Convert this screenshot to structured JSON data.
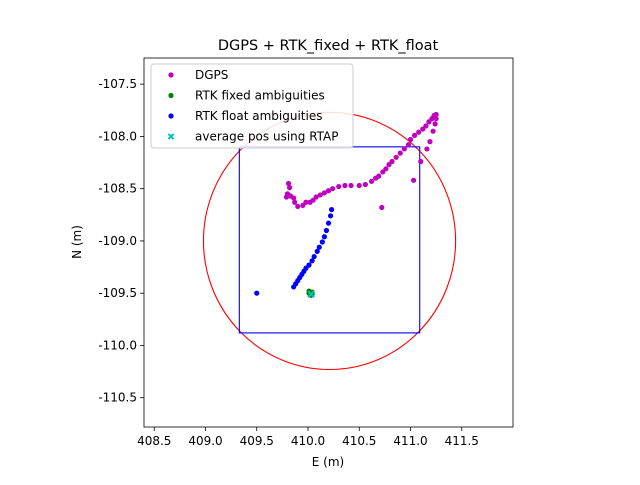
{
  "chart_data": {
    "type": "scatter",
    "title": "DGPS + RTK_fixed + RTK_float",
    "xlabel": "E (m)",
    "ylabel": "N (m)",
    "xlim": [
      408.4,
      412.0
    ],
    "ylim": [
      -110.78,
      -107.25
    ],
    "x_ticks": [
      408.5,
      409.0,
      409.5,
      410.0,
      410.5,
      411.0,
      411.5
    ],
    "x_tick_labels": [
      "408.5",
      "409.0",
      "409.5",
      "410.0",
      "410.5",
      "411.0",
      "411.5"
    ],
    "y_ticks": [
      -107.5,
      -108.0,
      -108.5,
      -109.0,
      -109.5,
      -110.0,
      -110.5
    ],
    "y_tick_labels": [
      "-107.5",
      "-108.0",
      "-108.5",
      "-109.0",
      "-109.5",
      "-110.0",
      "-110.5"
    ],
    "grid": false,
    "legend_position": "top-left",
    "series": [
      {
        "name": "DGPS",
        "marker": "circle",
        "color": "#bf00bf",
        "points": [
          [
            409.81,
            -108.45
          ],
          [
            409.82,
            -108.49
          ],
          [
            409.8,
            -108.55
          ],
          [
            409.79,
            -108.58
          ],
          [
            409.83,
            -108.57
          ],
          [
            409.86,
            -108.59
          ],
          [
            409.87,
            -108.63
          ],
          [
            409.9,
            -108.67
          ],
          [
            409.95,
            -108.66
          ],
          [
            409.98,
            -108.63
          ],
          [
            410.02,
            -108.63
          ],
          [
            410.05,
            -108.61
          ],
          [
            410.08,
            -108.58
          ],
          [
            410.12,
            -108.56
          ],
          [
            410.16,
            -108.54
          ],
          [
            410.2,
            -108.52
          ],
          [
            410.24,
            -108.5
          ],
          [
            410.3,
            -108.48
          ],
          [
            410.36,
            -108.47
          ],
          [
            410.42,
            -108.47
          ],
          [
            410.5,
            -108.47
          ],
          [
            410.56,
            -108.46
          ],
          [
            410.62,
            -108.43
          ],
          [
            410.66,
            -108.4
          ],
          [
            410.69,
            -108.38
          ],
          [
            410.73,
            -108.34
          ],
          [
            410.76,
            -108.31
          ],
          [
            410.79,
            -108.27
          ],
          [
            410.82,
            -108.24
          ],
          [
            410.86,
            -108.2
          ],
          [
            410.9,
            -108.16
          ],
          [
            410.94,
            -108.12
          ],
          [
            410.98,
            -108.08
          ],
          [
            411.0,
            -108.03
          ],
          [
            411.04,
            -107.99
          ],
          [
            411.08,
            -107.96
          ],
          [
            411.12,
            -107.93
          ],
          [
            411.15,
            -107.9
          ],
          [
            411.18,
            -107.86
          ],
          [
            411.21,
            -107.83
          ],
          [
            411.23,
            -107.8
          ],
          [
            411.25,
            -107.79
          ],
          [
            411.25,
            -107.83
          ],
          [
            411.24,
            -107.88
          ],
          [
            411.22,
            -107.95
          ],
          [
            411.19,
            -108.05
          ],
          [
            411.16,
            -108.12
          ],
          [
            411.1,
            -108.24
          ],
          [
            411.03,
            -108.42
          ],
          [
            410.72,
            -108.68
          ]
        ]
      },
      {
        "name": "RTK fixed ambiguities",
        "marker": "circle",
        "color": "#008000",
        "points": [
          [
            410.01,
            -109.48
          ],
          [
            410.02,
            -109.49
          ],
          [
            410.03,
            -109.5
          ],
          [
            410.04,
            -109.51
          ],
          [
            410.02,
            -109.51
          ],
          [
            410.03,
            -109.52
          ],
          [
            410.04,
            -109.49
          ],
          [
            410.01,
            -109.5
          ]
        ]
      },
      {
        "name": "RTK float ambiguities",
        "marker": "circle",
        "color": "#0000ff",
        "points": [
          [
            410.23,
            -108.7
          ],
          [
            410.22,
            -108.76
          ],
          [
            410.2,
            -108.83
          ],
          [
            410.18,
            -108.9
          ],
          [
            410.16,
            -108.96
          ],
          [
            410.14,
            -109.01
          ],
          [
            410.11,
            -109.06
          ],
          [
            410.09,
            -109.1
          ],
          [
            410.06,
            -109.15
          ],
          [
            410.04,
            -109.19
          ],
          [
            410.01,
            -109.23
          ],
          [
            409.98,
            -109.26
          ],
          [
            409.96,
            -109.29
          ],
          [
            409.94,
            -109.32
          ],
          [
            409.92,
            -109.35
          ],
          [
            409.9,
            -109.38
          ],
          [
            409.88,
            -109.41
          ],
          [
            409.86,
            -109.44
          ],
          [
            409.5,
            -109.5
          ]
        ]
      },
      {
        "name": "average pos using RTAP",
        "marker": "x",
        "color": "#00bfbf",
        "points": [
          [
            410.03,
            -109.51
          ]
        ]
      }
    ],
    "circle": {
      "center": [
        410.21,
        -109.0
      ],
      "radius": 1.23,
      "color": "#ff0000"
    },
    "rectangle": {
      "x": [
        409.33,
        411.09
      ],
      "y": [
        -109.88,
        -108.1
      ],
      "color": "#0000ff"
    }
  }
}
